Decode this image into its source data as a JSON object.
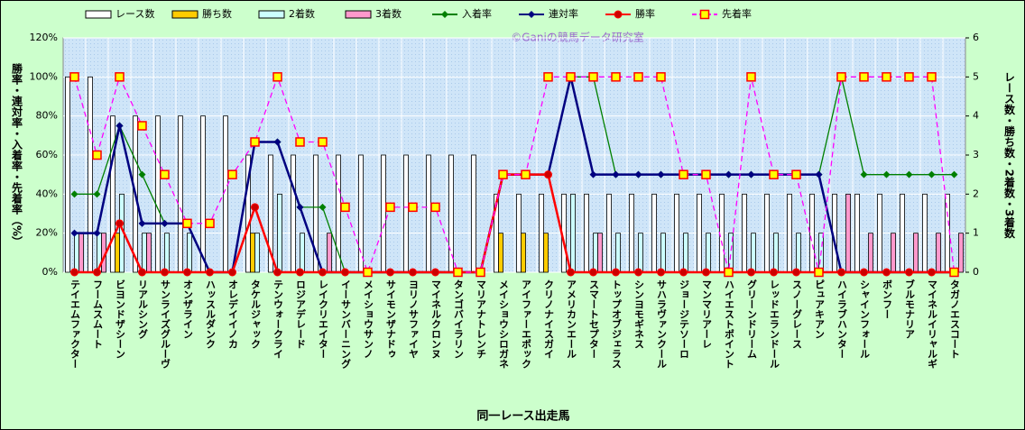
{
  "chart_data": {
    "type": "combo",
    "watermark": "©Ganiの競馬データ研究室",
    "x_label": "同一レース出走馬",
    "y_label": "勝率・連対率・入着率・先着率（%）",
    "y2_label": "レース数・勝ち数・2着数・3着数",
    "categories": [
      "テイエムファクター",
      "フームスムート",
      "ビヨンドザシーン",
      "リアルシング",
      "サンライズグルーヴ",
      "オンザライン",
      "ハッスルダンク",
      "オレデイイノカ",
      "タケルジャック",
      "テンウォークライ",
      "ロジアデレード",
      "レイクリエイター",
      "イーサンバーニング",
      "メイショウサンノ",
      "サイモンザナドゥ",
      "ヨリノサファイヤ",
      "マイネルクロンヌ",
      "タンゴバイラリン",
      "マリアナトレンチ",
      "メイショウシロガネ",
      "アイファーエポック",
      "クリノナイスガイ",
      "アメリカンエール",
      "スマートセプター",
      "トップオブジェラス",
      "シンヨモギネス",
      "サハラヴァンクール",
      "ジョージテソーロ",
      "マンマリアーレ",
      "ハイエストポイント",
      "グリーンドリーム",
      "レッドエランドール",
      "スノーグレース",
      "ピュアキアン",
      "ハイラブハンター",
      "シャインフォール",
      "ボンフー",
      "ブルモナリア",
      "マイネルイリャルギ",
      "タガノエスコート"
    ],
    "ylim": [
      0,
      120
    ],
    "yticks": [
      {
        "value": 0,
        "label": "0%"
      },
      {
        "value": 20,
        "label": "20%"
      },
      {
        "value": 40,
        "label": "40%"
      },
      {
        "value": 60,
        "label": "60%"
      },
      {
        "value": 80,
        "label": "80%"
      },
      {
        "value": 100,
        "label": "100%"
      },
      {
        "value": 120,
        "label": "120%"
      }
    ],
    "y2lim": [
      0,
      6
    ],
    "y2ticks": [
      0,
      1,
      2,
      3,
      4,
      5,
      6
    ],
    "grid": true,
    "series": [
      {
        "name": "レース数",
        "type": "bar",
        "axis": "y2",
        "color": "#ffffff",
        "values": [
          5,
          5,
          4,
          4,
          4,
          4,
          4,
          4,
          3,
          3,
          3,
          3,
          3,
          3,
          3,
          3,
          3,
          3,
          3,
          2,
          2,
          2,
          2,
          2,
          2,
          2,
          2,
          2,
          2,
          2,
          2,
          2,
          2,
          2,
          2,
          2,
          2,
          2,
          2,
          2
        ]
      },
      {
        "name": "勝ち数",
        "type": "bar",
        "axis": "y2",
        "color": "#ffcc00",
        "values": [
          0,
          0,
          1,
          0,
          0,
          0,
          0,
          0,
          1,
          0,
          0,
          0,
          0,
          0,
          0,
          0,
          0,
          0,
          0,
          1,
          1,
          1,
          0,
          0,
          0,
          0,
          0,
          0,
          0,
          0,
          0,
          0,
          0,
          0,
          0,
          0,
          0,
          0,
          0,
          0
        ]
      },
      {
        "name": "2着数",
        "type": "bar",
        "axis": "y2",
        "color": "#ccffff",
        "values": [
          1,
          1,
          2,
          1,
          1,
          1,
          0,
          0,
          1,
          2,
          1,
          0,
          0,
          0,
          0,
          0,
          0,
          0,
          0,
          0,
          0,
          0,
          2,
          1,
          1,
          1,
          1,
          1,
          1,
          1,
          1,
          1,
          1,
          1,
          0,
          0,
          0,
          0,
          0,
          0
        ]
      },
      {
        "name": "3着数",
        "type": "bar",
        "axis": "y2",
        "color": "#ff99cc",
        "values": [
          1,
          1,
          0,
          1,
          0,
          0,
          0,
          0,
          0,
          0,
          0,
          1,
          0,
          0,
          0,
          0,
          0,
          0,
          0,
          0,
          0,
          0,
          0,
          1,
          0,
          0,
          0,
          0,
          0,
          0,
          0,
          0,
          0,
          0,
          2,
          1,
          1,
          1,
          1,
          1
        ]
      },
      {
        "name": "入着率",
        "type": "line",
        "color": "#008000",
        "marker": "diamond",
        "marker_fill": "#008000",
        "dashed": false,
        "values": [
          40,
          40,
          75,
          50,
          25,
          25,
          0,
          0,
          66.7,
          66.7,
          33.3,
          33.3,
          0,
          0,
          0,
          0,
          0,
          0,
          0,
          50,
          50,
          50,
          100,
          100,
          50,
          50,
          50,
          50,
          50,
          50,
          50,
          50,
          50,
          50,
          100,
          50,
          50,
          50,
          50,
          50
        ]
      },
      {
        "name": "連対率",
        "type": "line",
        "color": "#000080",
        "marker": "diamond",
        "marker_fill": "#000080",
        "dashed": false,
        "values": [
          20,
          20,
          75,
          25,
          25,
          25,
          0,
          0,
          66.7,
          66.7,
          33.3,
          0,
          0,
          0,
          0,
          0,
          0,
          0,
          0,
          50,
          50,
          50,
          100,
          50,
          50,
          50,
          50,
          50,
          50,
          50,
          50,
          50,
          50,
          50,
          0,
          0,
          0,
          0,
          0,
          0
        ]
      },
      {
        "name": "勝率",
        "type": "line",
        "color": "#ff0000",
        "marker": "circle",
        "marker_fill": "#cc0000",
        "dashed": false,
        "values": [
          0,
          0,
          25,
          0,
          0,
          0,
          0,
          0,
          33.3,
          0,
          0,
          0,
          0,
          0,
          0,
          0,
          0,
          0,
          0,
          50,
          50,
          50,
          0,
          0,
          0,
          0,
          0,
          0,
          0,
          0,
          0,
          0,
          0,
          0,
          0,
          0,
          0,
          0,
          0,
          0
        ]
      },
      {
        "name": "先着率",
        "type": "line",
        "color": "#ff00ff",
        "marker": "square",
        "marker_fill": "#ffff00",
        "dashed": true,
        "values": [
          100,
          60,
          100,
          75,
          50,
          25,
          25,
          50,
          66.7,
          100,
          66.7,
          66.7,
          33.3,
          0,
          33.3,
          33.3,
          33.3,
          0,
          0,
          50,
          50,
          100,
          100,
          100,
          100,
          100,
          100,
          50,
          50,
          0,
          100,
          50,
          50,
          0,
          100,
          100,
          100,
          100,
          100,
          0
        ]
      }
    ]
  }
}
